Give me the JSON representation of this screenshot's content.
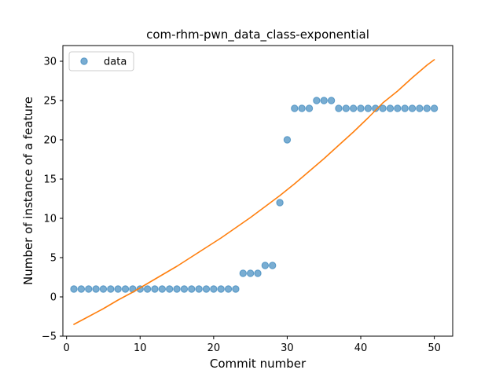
{
  "chart_data": {
    "type": "scatter",
    "title": "com-rhm-pwn_data_class-exponential",
    "xlabel": "Commit number",
    "ylabel": "Number of instance of a feature",
    "xlim": [
      -0.5,
      52.5
    ],
    "ylim": [
      -5,
      32
    ],
    "x_ticks": [
      0,
      10,
      20,
      30,
      40,
      50
    ],
    "y_ticks": [
      -5,
      0,
      5,
      10,
      15,
      20,
      25,
      30
    ],
    "grid": false,
    "legend_position": "top-left",
    "series": [
      {
        "name": "data",
        "kind": "scatter",
        "color": "#1f77b4",
        "alpha": 0.6,
        "x": [
          1,
          2,
          3,
          4,
          5,
          6,
          7,
          8,
          9,
          10,
          11,
          12,
          13,
          14,
          15,
          16,
          17,
          18,
          19,
          20,
          21,
          22,
          23,
          24,
          25,
          26,
          27,
          28,
          29,
          30,
          31,
          32,
          33,
          34,
          35,
          36,
          37,
          38,
          39,
          40,
          41,
          42,
          43,
          44,
          45,
          46,
          47,
          48,
          49,
          50
        ],
        "y": [
          1,
          1,
          1,
          1,
          1,
          1,
          1,
          1,
          1,
          1,
          1,
          1,
          1,
          1,
          1,
          1,
          1,
          1,
          1,
          1,
          1,
          1,
          1,
          3,
          3,
          3,
          4,
          4,
          12,
          20,
          24,
          24,
          24,
          25,
          25,
          25,
          24,
          24,
          24,
          24,
          24,
          24,
          24,
          24,
          24,
          24,
          24,
          24,
          24,
          24
        ]
      },
      {
        "kind": "line",
        "color": "#ff7f0e",
        "x": [
          1,
          3,
          5,
          7,
          9,
          11,
          13,
          15,
          17,
          19,
          21,
          23,
          25,
          27,
          29,
          31,
          33,
          35,
          37,
          39,
          41,
          43,
          45,
          47,
          49,
          50
        ],
        "y": [
          -3.5,
          -2.5,
          -1.5,
          -0.4,
          0.6,
          1.7,
          2.8,
          3.9,
          5.1,
          6.3,
          7.5,
          8.8,
          10.1,
          11.5,
          12.9,
          14.4,
          16.0,
          17.6,
          19.3,
          21.0,
          22.8,
          24.7,
          26.2,
          27.9,
          29.5,
          30.2
        ]
      }
    ]
  }
}
